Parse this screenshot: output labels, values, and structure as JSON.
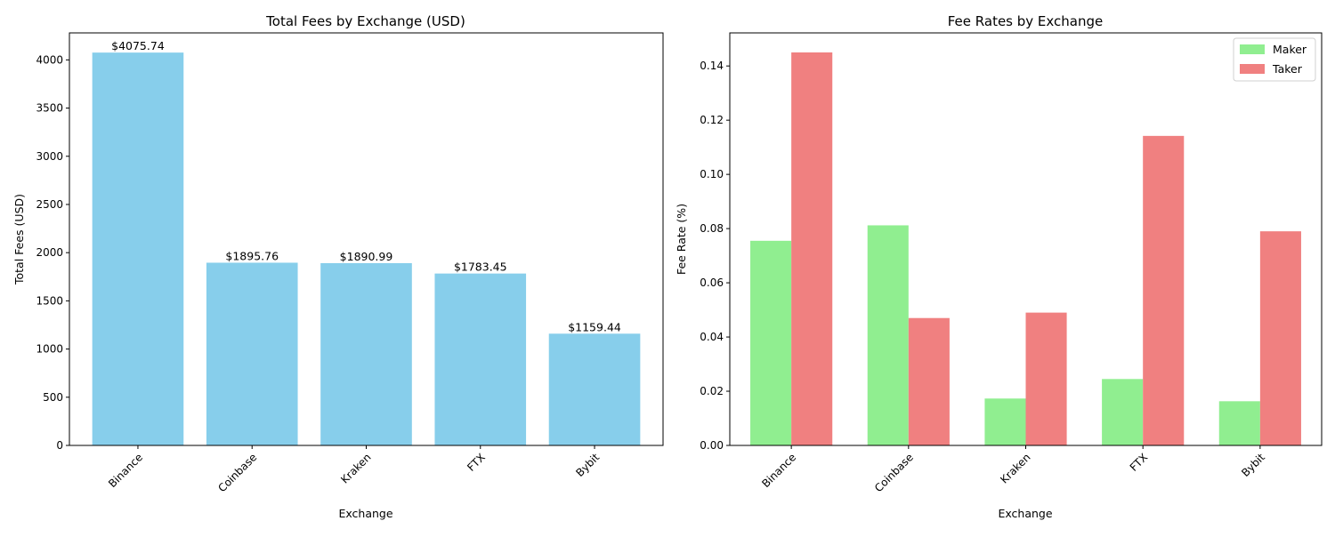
{
  "chart_data": [
    {
      "type": "bar",
      "title": "Total Fees by Exchange (USD)",
      "xlabel": "Exchange",
      "ylabel": "Total Fees (USD)",
      "categories": [
        "Binance",
        "Coinbase",
        "Kraken",
        "FTX",
        "Bybit"
      ],
      "values": [
        4075.74,
        1895.76,
        1890.99,
        1783.45,
        1159.44
      ],
      "data_labels": [
        "$4075.74",
        "$1895.76",
        "$1890.99",
        "$1783.45",
        "$1159.44"
      ],
      "ylim": [
        0,
        4280
      ],
      "yticks": [
        0,
        500,
        1000,
        1500,
        2000,
        2500,
        3000,
        3500,
        4000
      ],
      "color": "#87CEEB",
      "grid": false
    },
    {
      "type": "bar",
      "title": "Fee Rates by Exchange",
      "xlabel": "Exchange",
      "ylabel": "Fee Rate (%)",
      "categories": [
        "Binance",
        "Coinbase",
        "Kraken",
        "FTX",
        "Bybit"
      ],
      "series": [
        {
          "name": "Maker",
          "values": [
            0.0755,
            0.0812,
            0.0173,
            0.0245,
            0.0163
          ],
          "color": "#90EE90"
        },
        {
          "name": "Taker",
          "values": [
            0.145,
            0.047,
            0.049,
            0.1142,
            0.079
          ],
          "color": "#F08080"
        }
      ],
      "ylim": [
        0,
        0.1522
      ],
      "yticks": [
        "0.00",
        "0.02",
        "0.04",
        "0.06",
        "0.08",
        "0.10",
        "0.12",
        "0.14"
      ],
      "legend": "top-right",
      "grid": false
    }
  ]
}
